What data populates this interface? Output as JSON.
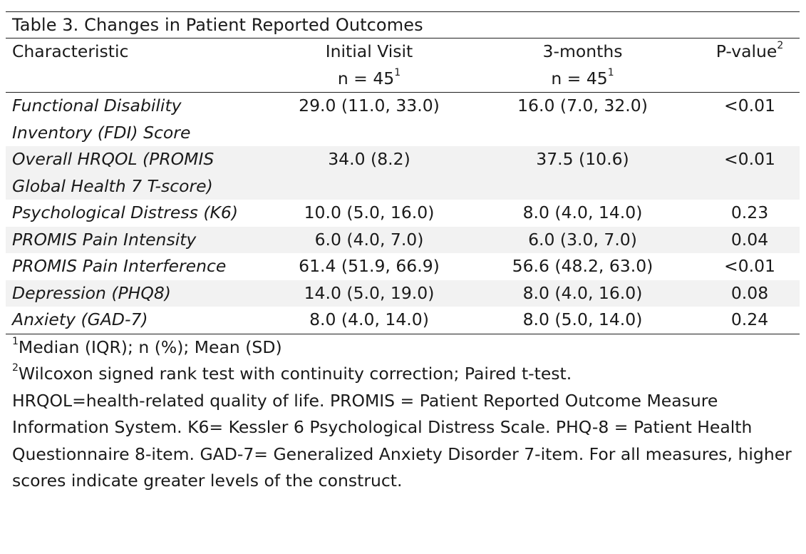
{
  "table": {
    "title": "Table 3. Changes in Patient Reported Outcomes",
    "headers": {
      "characteristic": "Characteristic",
      "initial": {
        "label": "Initial Visit",
        "n": "n = 45",
        "sup": "1"
      },
      "followup": {
        "label": "3-months",
        "n": "n = 45",
        "sup": "1"
      },
      "pvalue": {
        "label": "P-value",
        "sup": "2"
      }
    },
    "rows": [
      {
        "characteristic": "Functional Disability Inventory (FDI) Score",
        "initial": "29.0 (11.0, 33.0)",
        "followup": "16.0 (7.0, 32.0)",
        "pvalue": "<0.01"
      },
      {
        "characteristic": "Overall HRQOL (PROMIS Global Health 7 T-score)",
        "initial": "34.0 (8.2)",
        "followup": "37.5 (10.6)",
        "pvalue": "<0.01"
      },
      {
        "characteristic": "Psychological Distress (K6)",
        "initial": "10.0 (5.0, 16.0)",
        "followup": "8.0 (4.0, 14.0)",
        "pvalue": "0.23"
      },
      {
        "characteristic": "PROMIS Pain Intensity",
        "initial": "6.0 (4.0, 7.0)",
        "followup": "6.0 (3.0, 7.0)",
        "pvalue": "0.04"
      },
      {
        "characteristic": "PROMIS Pain Interference",
        "initial": "61.4 (51.9, 66.9)",
        "followup": "56.6 (48.2, 63.0)",
        "pvalue": "<0.01"
      },
      {
        "characteristic": "Depression (PHQ8)",
        "initial": "14.0 (5.0, 19.0)",
        "followup": "8.0 (4.0, 16.0)",
        "pvalue": "0.08"
      },
      {
        "characteristic": "Anxiety (GAD-7)",
        "initial": "8.0 (4.0, 14.0)",
        "followup": "8.0 (5.0, 14.0)",
        "pvalue": "0.24"
      }
    ],
    "footnotes": {
      "fn1": {
        "sup": "1",
        "text": "Median (IQR); n (%); Mean (SD)"
      },
      "fn2": {
        "sup": "2",
        "text": "Wilcoxon signed rank test with continuity correction; Paired t-test."
      },
      "abbreviations": "HRQOL=health-related quality of life. PROMIS = Patient Reported Outcome Measure Information System. K6= Kessler 6 Psychological Distress Scale. PHQ-8 = Patient Health Questionnaire 8-item. GAD-7= Generalized Anxiety Disorder 7-item. For all measures, higher scores indicate greater levels of the construct."
    },
    "colors": {
      "shade": "#f2f2f2",
      "rule": "#1f1f1f",
      "text": "#1a1a1a"
    }
  }
}
